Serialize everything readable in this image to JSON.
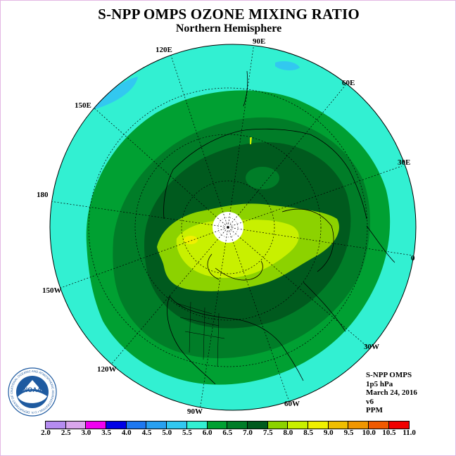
{
  "title": "S-NPP OMPS OZONE MIXING RATIO",
  "subtitle": "Northern Hemisphere",
  "longitude_labels": [
    "90E",
    "120E",
    "60E",
    "150E",
    "30E",
    "180",
    "0",
    "150W",
    "30W",
    "120W",
    "60W",
    "90W"
  ],
  "info": {
    "instrument": "S-NPP OMPS",
    "level": "1p5 hPa",
    "date": "March 24, 2016",
    "version": "v6",
    "units": "PPM"
  },
  "logo_text": "NOAA",
  "logo_ring_text": "NATIONAL OCEANIC AND ATMOSPHERIC ADMINISTRATION • U.S. DEPARTMENT OF COMMERCE",
  "colorbar": {
    "colors": [
      "#b58cf0",
      "#d9a6ec",
      "#f000f0",
      "#0000e6",
      "#1e78f0",
      "#28a0f0",
      "#32c8f0",
      "#32f0d2",
      "#00a032",
      "#007d28",
      "#005a1e",
      "#8cd200",
      "#c8f000",
      "#f0f000",
      "#f0be00",
      "#f09600",
      "#f05a00",
      "#f00000",
      "#8c5a3c"
    ],
    "ticks": [
      "2.0",
      "2.5",
      "3.0",
      "3.5",
      "4.0",
      "4.5",
      "5.0",
      "5.5",
      "6.0",
      "6.5",
      "7.0",
      "7.5",
      "8.0",
      "8.5",
      "9.0",
      "9.5",
      "10.0",
      "10.5",
      "11.0"
    ]
  }
}
